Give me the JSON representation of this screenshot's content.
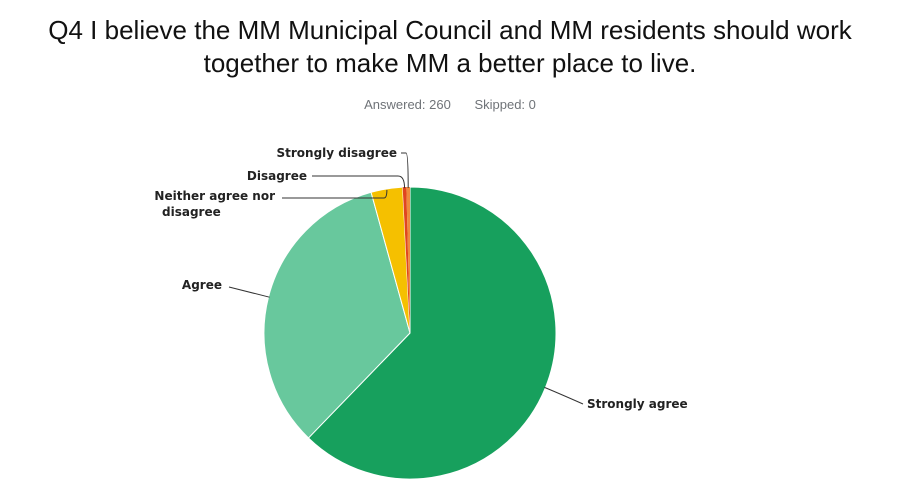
{
  "title_line1": "Q4 I believe the MM Municipal Council and MM residents should work",
  "title_line2": "together to make MM a better place to live.",
  "answered": "Answered: 260",
  "skipped": "Skipped: 0",
  "chart_data": {
    "type": "pie",
    "title": "Q4 I believe the MM Municipal Council and MM residents should work together to make MM a better place to live.",
    "start": "top",
    "direction": "clockwise",
    "slices": [
      {
        "label": "Strongly agree",
        "value": 62.3,
        "color": "#17a05d"
      },
      {
        "label": "Agree",
        "value": 33.5,
        "color": "#68c89d"
      },
      {
        "label": "Neither agree nor disagree",
        "value": 3.5,
        "color": "#f5c000"
      },
      {
        "label": "Disagree",
        "value": 0.4,
        "color": "#e0451f"
      },
      {
        "label": "Strongly disagree",
        "value": 0.4,
        "color": "#f08a3c"
      }
    ]
  }
}
